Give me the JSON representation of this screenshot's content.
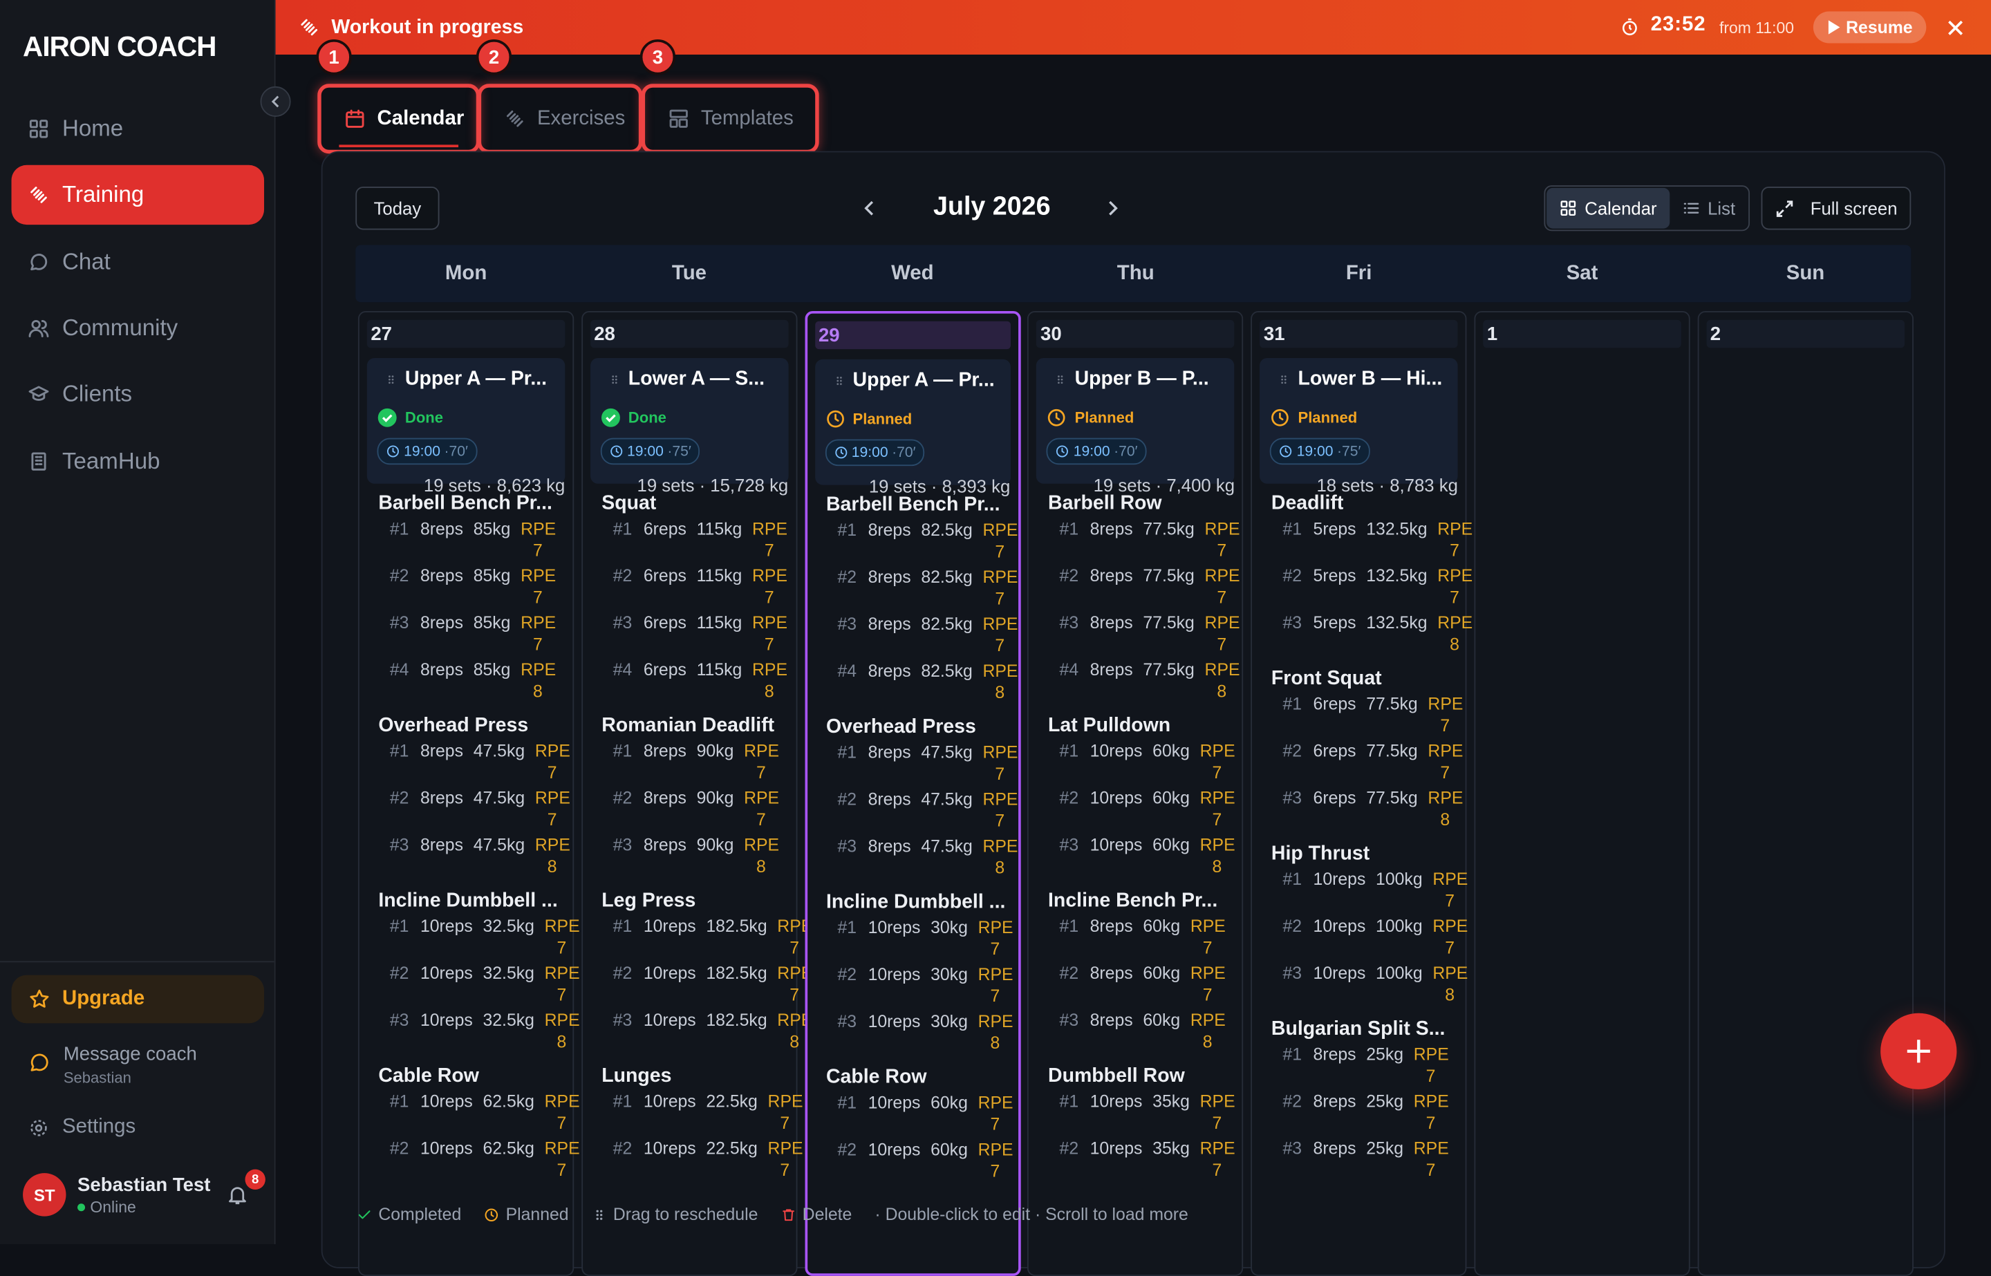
{
  "sidebar": {
    "logo": "AIRON COACH",
    "nav": [
      {
        "label": "Home"
      },
      {
        "label": "Training",
        "active": true
      },
      {
        "label": "Chat"
      },
      {
        "label": "Community"
      },
      {
        "label": "Clients"
      },
      {
        "label": "TeamHub"
      }
    ],
    "upgrade": "Upgrade",
    "message_coach": {
      "title": "Message coach",
      "subtitle": "Sebastian"
    },
    "settings": "Settings",
    "user": {
      "initials": "ST",
      "name": "Sebastian Test",
      "status": "Online",
      "notifications": "8"
    }
  },
  "banner": {
    "title": "Workout in progress",
    "timer": "23:52",
    "since": "from 11:00",
    "resume": "Resume"
  },
  "tabs": [
    {
      "number": "1",
      "label": "Calendar",
      "active": true
    },
    {
      "number": "2",
      "label": "Exercises"
    },
    {
      "number": "3",
      "label": "Templates"
    }
  ],
  "toolbar": {
    "today": "Today",
    "month": "July 2026",
    "views": [
      {
        "label": "Calendar",
        "active": true
      },
      {
        "label": "List"
      }
    ],
    "fullscreen": "Full screen"
  },
  "calendar": {
    "weekdays": [
      "Mon",
      "Tue",
      "Wed",
      "Thu",
      "Fri",
      "Sat",
      "Sun"
    ],
    "days": [
      {
        "date": "27",
        "workout": {
          "title": "Upper A — Pr...",
          "status": "Done",
          "state": "done",
          "time": "19:00",
          "duration": "·70′",
          "summary": "19 sets · 8,623 kg",
          "exercises": [
            {
              "name": "Barbell Bench Pr...",
              "sets": [
                {
                  "n": "#1",
                  "reps": "8reps",
                  "weight": "85kg",
                  "rpe": "RPE 7"
                },
                {
                  "n": "#2",
                  "reps": "8reps",
                  "weight": "85kg",
                  "rpe": "RPE 7"
                },
                {
                  "n": "#3",
                  "reps": "8reps",
                  "weight": "85kg",
                  "rpe": "RPE 7"
                },
                {
                  "n": "#4",
                  "reps": "8reps",
                  "weight": "85kg",
                  "rpe": "RPE 8"
                }
              ]
            },
            {
              "name": "Overhead Press",
              "sets": [
                {
                  "n": "#1",
                  "reps": "8reps",
                  "weight": "47.5kg",
                  "rpe": "RPE 7"
                },
                {
                  "n": "#2",
                  "reps": "8reps",
                  "weight": "47.5kg",
                  "rpe": "RPE 7"
                },
                {
                  "n": "#3",
                  "reps": "8reps",
                  "weight": "47.5kg",
                  "rpe": "RPE 8"
                }
              ]
            },
            {
              "name": "Incline Dumbbell ...",
              "sets": [
                {
                  "n": "#1",
                  "reps": "10reps",
                  "weight": "32.5kg",
                  "rpe": "RPE 7"
                },
                {
                  "n": "#2",
                  "reps": "10reps",
                  "weight": "32.5kg",
                  "rpe": "RPE 7"
                },
                {
                  "n": "#3",
                  "reps": "10reps",
                  "weight": "32.5kg",
                  "rpe": "RPE 8"
                }
              ]
            },
            {
              "name": "Cable Row",
              "sets": [
                {
                  "n": "#1",
                  "reps": "10reps",
                  "weight": "62.5kg",
                  "rpe": "RPE 7"
                },
                {
                  "n": "#2",
                  "reps": "10reps",
                  "weight": "62.5kg",
                  "rpe": "RPE 7"
                }
              ]
            }
          ]
        }
      },
      {
        "date": "28",
        "workout": {
          "title": "Lower A — S...",
          "status": "Done",
          "state": "done",
          "time": "19:00",
          "duration": "·75′",
          "summary": "19 sets · 15,728 kg",
          "exercises": [
            {
              "name": "Squat",
              "sets": [
                {
                  "n": "#1",
                  "reps": "6reps",
                  "weight": "115kg",
                  "rpe": "RPE 7"
                },
                {
                  "n": "#2",
                  "reps": "6reps",
                  "weight": "115kg",
                  "rpe": "RPE 7"
                },
                {
                  "n": "#3",
                  "reps": "6reps",
                  "weight": "115kg",
                  "rpe": "RPE 7"
                },
                {
                  "n": "#4",
                  "reps": "6reps",
                  "weight": "115kg",
                  "rpe": "RPE 8"
                }
              ]
            },
            {
              "name": "Romanian Deadlift",
              "sets": [
                {
                  "n": "#1",
                  "reps": "8reps",
                  "weight": "90kg",
                  "rpe": "RPE 7"
                },
                {
                  "n": "#2",
                  "reps": "8reps",
                  "weight": "90kg",
                  "rpe": "RPE 7"
                },
                {
                  "n": "#3",
                  "reps": "8reps",
                  "weight": "90kg",
                  "rpe": "RPE 8"
                }
              ]
            },
            {
              "name": "Leg Press",
              "sets": [
                {
                  "n": "#1",
                  "reps": "10reps",
                  "weight": "182.5kg",
                  "rpe": "RPE 7"
                },
                {
                  "n": "#2",
                  "reps": "10reps",
                  "weight": "182.5kg",
                  "rpe": "RPE 7"
                },
                {
                  "n": "#3",
                  "reps": "10reps",
                  "weight": "182.5kg",
                  "rpe": "RPE 8"
                }
              ]
            },
            {
              "name": "Lunges",
              "sets": [
                {
                  "n": "#1",
                  "reps": "10reps",
                  "weight": "22.5kg",
                  "rpe": "RPE 7"
                },
                {
                  "n": "#2",
                  "reps": "10reps",
                  "weight": "22.5kg",
                  "rpe": "RPE 7"
                }
              ]
            }
          ]
        }
      },
      {
        "date": "29",
        "today": true,
        "workout": {
          "title": "Upper A — Pr...",
          "status": "Planned",
          "state": "planned",
          "time": "19:00",
          "duration": "·70′",
          "summary": "19 sets · 8,393 kg",
          "exercises": [
            {
              "name": "Barbell Bench Pr...",
              "sets": [
                {
                  "n": "#1",
                  "reps": "8reps",
                  "weight": "82.5kg",
                  "rpe": "RPE 7"
                },
                {
                  "n": "#2",
                  "reps": "8reps",
                  "weight": "82.5kg",
                  "rpe": "RPE 7"
                },
                {
                  "n": "#3",
                  "reps": "8reps",
                  "weight": "82.5kg",
                  "rpe": "RPE 7"
                },
                {
                  "n": "#4",
                  "reps": "8reps",
                  "weight": "82.5kg",
                  "rpe": "RPE 8"
                }
              ]
            },
            {
              "name": "Overhead Press",
              "sets": [
                {
                  "n": "#1",
                  "reps": "8reps",
                  "weight": "47.5kg",
                  "rpe": "RPE 7"
                },
                {
                  "n": "#2",
                  "reps": "8reps",
                  "weight": "47.5kg",
                  "rpe": "RPE 7"
                },
                {
                  "n": "#3",
                  "reps": "8reps",
                  "weight": "47.5kg",
                  "rpe": "RPE 8"
                }
              ]
            },
            {
              "name": "Incline Dumbbell ...",
              "sets": [
                {
                  "n": "#1",
                  "reps": "10reps",
                  "weight": "30kg",
                  "rpe": "RPE 7"
                },
                {
                  "n": "#2",
                  "reps": "10reps",
                  "weight": "30kg",
                  "rpe": "RPE 7"
                },
                {
                  "n": "#3",
                  "reps": "10reps",
                  "weight": "30kg",
                  "rpe": "RPE 8"
                }
              ]
            },
            {
              "name": "Cable Row",
              "sets": [
                {
                  "n": "#1",
                  "reps": "10reps",
                  "weight": "60kg",
                  "rpe": "RPE 7"
                },
                {
                  "n": "#2",
                  "reps": "10reps",
                  "weight": "60kg",
                  "rpe": "RPE 7"
                }
              ]
            }
          ]
        }
      },
      {
        "date": "30",
        "workout": {
          "title": "Upper B — P...",
          "status": "Planned",
          "state": "planned",
          "time": "19:00",
          "duration": "·70′",
          "summary": "19 sets · 7,400 kg",
          "exercises": [
            {
              "name": "Barbell Row",
              "sets": [
                {
                  "n": "#1",
                  "reps": "8reps",
                  "weight": "77.5kg",
                  "rpe": "RPE 7"
                },
                {
                  "n": "#2",
                  "reps": "8reps",
                  "weight": "77.5kg",
                  "rpe": "RPE 7"
                },
                {
                  "n": "#3",
                  "reps": "8reps",
                  "weight": "77.5kg",
                  "rpe": "RPE 7"
                },
                {
                  "n": "#4",
                  "reps": "8reps",
                  "weight": "77.5kg",
                  "rpe": "RPE 8"
                }
              ]
            },
            {
              "name": "Lat Pulldown",
              "sets": [
                {
                  "n": "#1",
                  "reps": "10reps",
                  "weight": "60kg",
                  "rpe": "RPE 7"
                },
                {
                  "n": "#2",
                  "reps": "10reps",
                  "weight": "60kg",
                  "rpe": "RPE 7"
                },
                {
                  "n": "#3",
                  "reps": "10reps",
                  "weight": "60kg",
                  "rpe": "RPE 8"
                }
              ]
            },
            {
              "name": "Incline Bench Pr...",
              "sets": [
                {
                  "n": "#1",
                  "reps": "8reps",
                  "weight": "60kg",
                  "rpe": "RPE 7"
                },
                {
                  "n": "#2",
                  "reps": "8reps",
                  "weight": "60kg",
                  "rpe": "RPE 7"
                },
                {
                  "n": "#3",
                  "reps": "8reps",
                  "weight": "60kg",
                  "rpe": "RPE 8"
                }
              ]
            },
            {
              "name": "Dumbbell Row",
              "sets": [
                {
                  "n": "#1",
                  "reps": "10reps",
                  "weight": "35kg",
                  "rpe": "RPE 7"
                },
                {
                  "n": "#2",
                  "reps": "10reps",
                  "weight": "35kg",
                  "rpe": "RPE 7"
                }
              ]
            }
          ]
        }
      },
      {
        "date": "31",
        "workout": {
          "title": "Lower B — Hi...",
          "status": "Planned",
          "state": "planned",
          "time": "19:00",
          "duration": "·75′",
          "summary": "18 sets · 8,783 kg",
          "exercises": [
            {
              "name": "Deadlift",
              "sets": [
                {
                  "n": "#1",
                  "reps": "5reps",
                  "weight": "132.5kg",
                  "rpe": "RPE 7"
                },
                {
                  "n": "#2",
                  "reps": "5reps",
                  "weight": "132.5kg",
                  "rpe": "RPE 7"
                },
                {
                  "n": "#3",
                  "reps": "5reps",
                  "weight": "132.5kg",
                  "rpe": "RPE 8"
                }
              ]
            },
            {
              "name": "Front Squat",
              "sets": [
                {
                  "n": "#1",
                  "reps": "6reps",
                  "weight": "77.5kg",
                  "rpe": "RPE 7"
                },
                {
                  "n": "#2",
                  "reps": "6reps",
                  "weight": "77.5kg",
                  "rpe": "RPE 7"
                },
                {
                  "n": "#3",
                  "reps": "6reps",
                  "weight": "77.5kg",
                  "rpe": "RPE 8"
                }
              ]
            },
            {
              "name": "Hip Thrust",
              "sets": [
                {
                  "n": "#1",
                  "reps": "10reps",
                  "weight": "100kg",
                  "rpe": "RPE 7"
                },
                {
                  "n": "#2",
                  "reps": "10reps",
                  "weight": "100kg",
                  "rpe": "RPE 7"
                },
                {
                  "n": "#3",
                  "reps": "10reps",
                  "weight": "100kg",
                  "rpe": "RPE 8"
                }
              ]
            },
            {
              "name": "Bulgarian Split S...",
              "sets": [
                {
                  "n": "#1",
                  "reps": "8reps",
                  "weight": "25kg",
                  "rpe": "RPE 7"
                },
                {
                  "n": "#2",
                  "reps": "8reps",
                  "weight": "25kg",
                  "rpe": "RPE 7"
                },
                {
                  "n": "#3",
                  "reps": "8reps",
                  "weight": "25kg",
                  "rpe": "RPE 7"
                }
              ]
            }
          ]
        }
      },
      {
        "date": "1"
      },
      {
        "date": "2"
      }
    ]
  },
  "legend": [
    {
      "label": "Completed",
      "icon": "check"
    },
    {
      "label": "Planned",
      "icon": "clock"
    },
    {
      "label": "Drag to reschedule",
      "icon": "dots"
    },
    {
      "label": "Delete",
      "icon": "trash"
    },
    {
      "label": "· Double-click to edit · Scroll to load more"
    }
  ]
}
